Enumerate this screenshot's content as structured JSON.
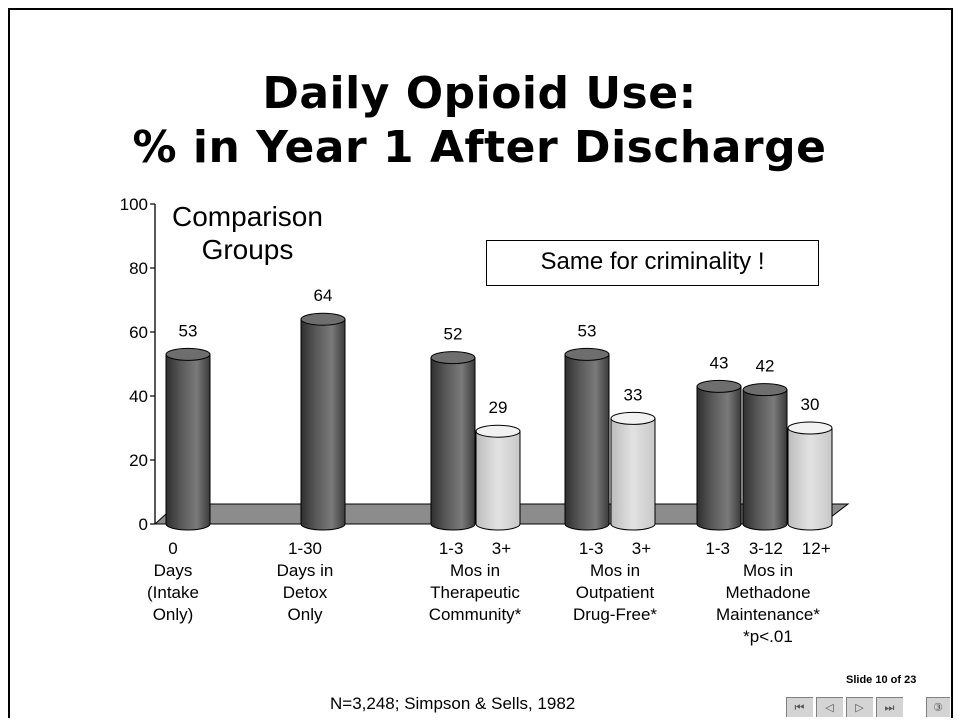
{
  "slide": {
    "title_line1": "Daily Opioid Use:",
    "title_line2": "% in Year 1 After Discharge",
    "callout": "Same for criminality !",
    "groups_label_line1": "Comparison",
    "groups_label_line2": "Groups",
    "footer": "N=3,248; Simpson & Sells, 1982",
    "slide_number": "Slide 10 of 23"
  },
  "nav": {
    "first": "⏮",
    "prev": "◁",
    "next": "▷",
    "last": "⏭",
    "extra": "③"
  },
  "chart_data": {
    "type": "bar",
    "title": "Daily Opioid Use: % in Year 1 After Discharge",
    "ylim": [
      0,
      100
    ],
    "yticks": [
      "0",
      "20",
      "40",
      "60",
      "80",
      "100"
    ],
    "bars": [
      {
        "label": "0",
        "value": 53,
        "shade": "dark"
      },
      {
        "label": "1-30",
        "value": 64,
        "shade": "dark"
      },
      {
        "label": "1-3",
        "value": 52,
        "shade": "dark"
      },
      {
        "label": "3+",
        "value": 29,
        "shade": "light"
      },
      {
        "label": "1-3",
        "value": 53,
        "shade": "dark"
      },
      {
        "label": "3+",
        "value": 33,
        "shade": "light"
      },
      {
        "label": "1-3",
        "value": 43,
        "shade": "dark"
      },
      {
        "label": "3-12",
        "value": 42,
        "shade": "dark"
      },
      {
        "label": "12+",
        "value": 30,
        "shade": "light"
      }
    ],
    "groups": [
      {
        "line1": "Days",
        "line2": "(Intake",
        "line3": "Only)"
      },
      {
        "line1": "Days in",
        "line2": "Detox",
        "line3": "Only"
      },
      {
        "line1": "Mos in",
        "line2": "Therapeutic",
        "line3": "Community*"
      },
      {
        "line1": "Mos in",
        "line2": "Outpatient",
        "line3": "Drug-Free*"
      },
      {
        "line1": "Mos in",
        "line2": "Methadone",
        "line3": "Maintenance*",
        "line4": "*p<.01"
      }
    ],
    "colors": {
      "dark": "#5a5a5a",
      "light": "#e2e2e2",
      "floor": "#8c8c8c"
    }
  }
}
